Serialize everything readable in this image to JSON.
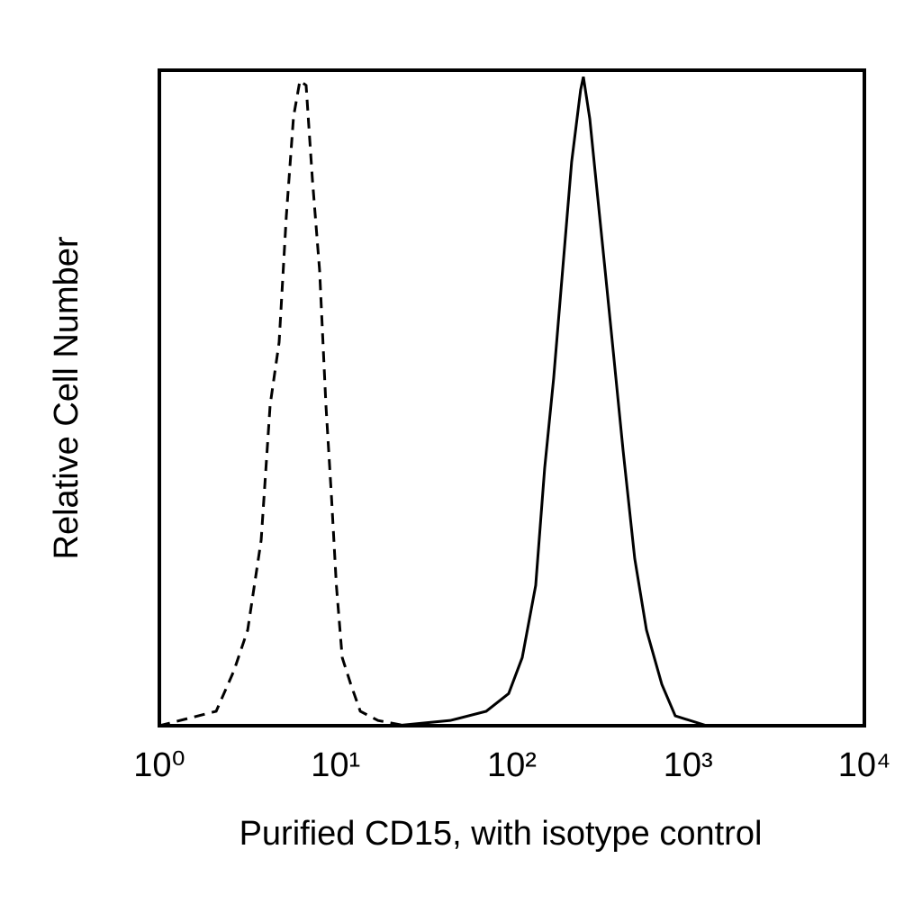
{
  "chart_data": {
    "type": "line",
    "xlabel": "Purified CD15, with isotype control",
    "ylabel": "Relative Cell Number",
    "xscale": "log",
    "xlim": [
      1,
      10000
    ],
    "ylim": [
      0,
      100
    ],
    "xticks": [
      {
        "value": 1,
        "label": "10⁰"
      },
      {
        "value": 10,
        "label": "10¹"
      },
      {
        "value": 100,
        "label": "10²"
      },
      {
        "value": 1000,
        "label": "10³"
      },
      {
        "value": 10000,
        "label": "10⁴"
      }
    ],
    "series": [
      {
        "color": "#000000",
        "line_style": "dashed",
        "x": [
          1,
          2.1,
          2.65,
          3.17,
          3.78,
          4.25,
          4.78,
          5.25,
          5.77,
          6.27,
          6.8,
          7.39,
          8.11,
          8.81,
          9.46,
          10.1,
          10.9,
          12.2,
          13.8,
          17.4,
          24.8
        ],
        "values": [
          0,
          2.2,
          8.4,
          14.6,
          28.3,
          48.9,
          58.5,
          77.7,
          92.9,
          98.4,
          97.7,
          83.2,
          69.5,
          48.9,
          35.2,
          21.4,
          10.4,
          6.3,
          2.2,
          0.8,
          0
        ]
      },
      {
        "color": "#000000",
        "line_style": "solid",
        "x": [
          22.1,
          44.7,
          71.5,
          95.9,
          114.5,
          136.5,
          153.5,
          172.6,
          194.1,
          218.3,
          245.5,
          254.5,
          276.7,
          300.6,
          338,
          380.2,
          427.6,
          497.8,
          580.3,
          709.5,
          845.3,
          1276
        ],
        "values": [
          0,
          0.8,
          2.2,
          4.9,
          10.4,
          21.4,
          39.3,
          53,
          69.5,
          86,
          97,
          99,
          92.6,
          83,
          69.5,
          55.8,
          42,
          25.5,
          14.6,
          6.3,
          1.5,
          0
        ]
      }
    ]
  }
}
